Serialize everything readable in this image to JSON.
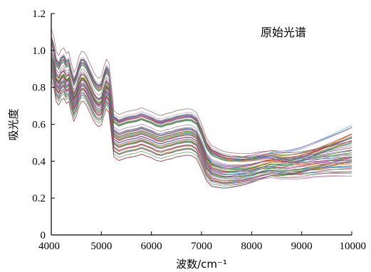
{
  "chart_data": {
    "type": "line",
    "title": "",
    "annotation": "原始光谱",
    "xlabel": "波数/cm⁻¹",
    "ylabel": "吸光度",
    "xlim": [
      4000,
      10000
    ],
    "ylim": [
      0,
      1.2
    ],
    "x_ticks": [
      "4000",
      "5000",
      "6000",
      "7000",
      "8000",
      "9000",
      "10000"
    ],
    "y_ticks": [
      "0",
      "0.2",
      "0.4",
      "0.6",
      "0.8",
      "1.0",
      "1.2"
    ],
    "grid": false,
    "legend": "none",
    "series_count": 60,
    "base_profile": {
      "x": [
        4000,
        4050,
        4100,
        4150,
        4200,
        4250,
        4300,
        4350,
        4400,
        4450,
        4500,
        4550,
        4600,
        4650,
        4700,
        4750,
        4800,
        4850,
        4900,
        4950,
        5000,
        5050,
        5100,
        5150,
        5200,
        5250,
        5300,
        5350,
        5400,
        5500,
        5600,
        5700,
        5800,
        5900,
        6000,
        6100,
        6200,
        6300,
        6400,
        6500,
        6600,
        6700,
        6800,
        6900,
        7000,
        7100,
        7200,
        7300,
        7400,
        7500,
        7600,
        7800,
        8000,
        8200,
        8400,
        8600,
        8800,
        9000,
        9200,
        9400,
        9600,
        9800,
        10000
      ],
      "y": [
        1.0,
        0.96,
        0.88,
        0.86,
        0.89,
        0.9,
        0.87,
        0.88,
        0.82,
        0.77,
        0.8,
        0.85,
        0.88,
        0.88,
        0.86,
        0.83,
        0.8,
        0.77,
        0.75,
        0.74,
        0.75,
        0.8,
        0.84,
        0.82,
        0.7,
        0.57,
        0.56,
        0.55,
        0.555,
        0.565,
        0.57,
        0.575,
        0.585,
        0.575,
        0.565,
        0.55,
        0.545,
        0.555,
        0.56,
        0.57,
        0.575,
        0.58,
        0.578,
        0.56,
        0.5,
        0.43,
        0.395,
        0.385,
        0.375,
        0.37,
        0.37,
        0.372,
        0.38,
        0.395,
        0.405,
        0.4,
        0.405,
        0.415,
        0.43,
        0.445,
        0.46,
        0.475,
        0.49
      ]
    },
    "offset_range": [
      -0.13,
      0.09
    ],
    "tail_range": [
      0.35,
      0.58
    ],
    "palette": [
      "#1f77b4",
      "#d62728",
      "#2ca02c",
      "#9467bd",
      "#8c564b",
      "#e377c2",
      "#7f7f7f",
      "#bcbd22",
      "#17becf",
      "#ff7f0e",
      "#3b5998",
      "#a05d56",
      "#6b8e23",
      "#c71585",
      "#4682b4",
      "#b8860b",
      "#2e8b57",
      "#8a2be2"
    ]
  }
}
